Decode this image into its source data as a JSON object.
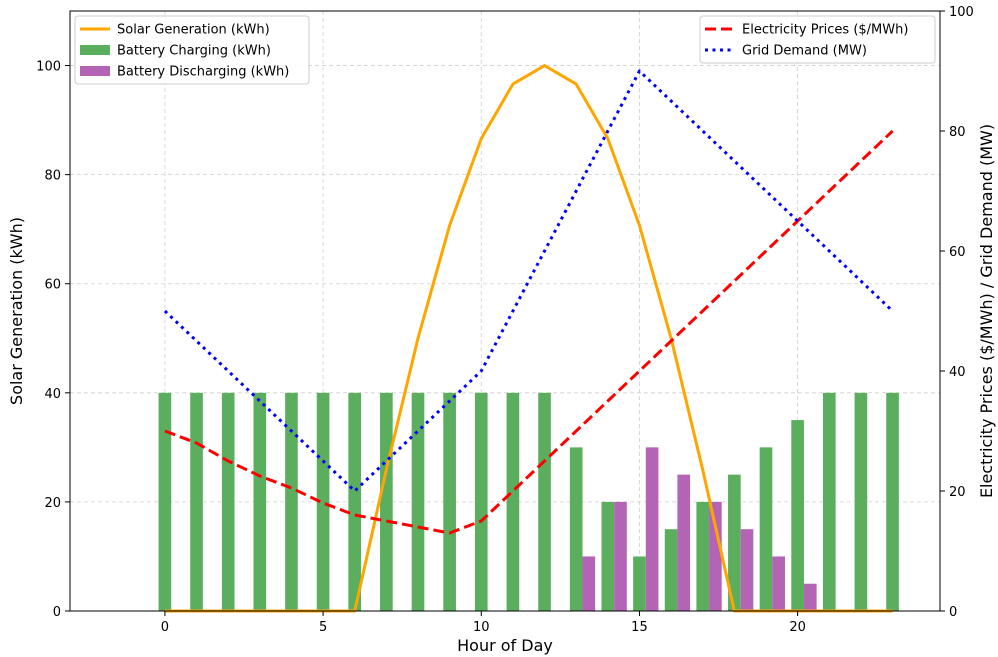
{
  "chart_data": {
    "type": "bar",
    "x": [
      0,
      1,
      2,
      3,
      4,
      5,
      6,
      7,
      8,
      9,
      10,
      11,
      12,
      13,
      14,
      15,
      16,
      17,
      18,
      19,
      20,
      21,
      22,
      23
    ],
    "xlabel": "Hour of Day",
    "ylabel_left": "Solar Generation (kWh)",
    "ylabel_right": "Electricity Prices ($/MWh) / Grid Demand (MW)",
    "xlim": [
      -3,
      24.5
    ],
    "ylim_left": [
      0,
      110
    ],
    "ylim_right": [
      0,
      100
    ],
    "xticks": [
      0,
      5,
      10,
      15,
      20
    ],
    "yticks_left": [
      0,
      20,
      40,
      60,
      80,
      100
    ],
    "yticks_right": [
      0,
      20,
      40,
      60,
      80,
      100
    ],
    "grid": true,
    "series": [
      {
        "name": "Solar Generation (kWh)",
        "type": "line",
        "axis": "left",
        "color": "#FFA500",
        "style": "solid",
        "values": [
          0,
          0,
          0,
          0,
          0,
          0,
          0,
          25.9,
          50.0,
          70.7,
          86.6,
          96.6,
          100.0,
          96.6,
          86.6,
          70.7,
          50.0,
          25.9,
          0,
          0,
          0,
          0,
          0,
          0
        ]
      },
      {
        "name": "Battery Charging (kWh)",
        "type": "bar",
        "axis": "left",
        "color": "#5CAE5F",
        "values": [
          40,
          40,
          40,
          40,
          40,
          40,
          40,
          40,
          40,
          40,
          40,
          40,
          40,
          30,
          20,
          10,
          15,
          20,
          25,
          30,
          35,
          40,
          40,
          40
        ]
      },
      {
        "name": "Battery Discharging (kWh)",
        "type": "bar",
        "axis": "left",
        "color": "#B464B4",
        "values": [
          0,
          0,
          0,
          0,
          0,
          0,
          0,
          0,
          0,
          0,
          0,
          0,
          0,
          10,
          20,
          30,
          25,
          20,
          15,
          10,
          5,
          0,
          0,
          0
        ]
      },
      {
        "name": "Electricity Prices ($/MWh)",
        "type": "line",
        "axis": "right",
        "color": "#FF0000",
        "style": "dashed",
        "values": [
          30,
          28,
          25,
          22.5,
          20.5,
          18,
          16,
          15,
          14,
          13,
          15,
          20,
          25,
          30,
          35,
          40,
          45,
          50,
          55,
          60,
          65,
          70,
          75,
          80
        ]
      },
      {
        "name": "Grid Demand (MW)",
        "type": "line",
        "axis": "right",
        "color": "#0000FF",
        "style": "dotted",
        "values": [
          50,
          45,
          40,
          35,
          30,
          25,
          20,
          25,
          30,
          35,
          40,
          50,
          60,
          70,
          80,
          90,
          85,
          80,
          75,
          70,
          65,
          60,
          55,
          50
        ]
      }
    ],
    "legend_left_position": "upper-left",
    "legend_right_position": "upper-right"
  }
}
